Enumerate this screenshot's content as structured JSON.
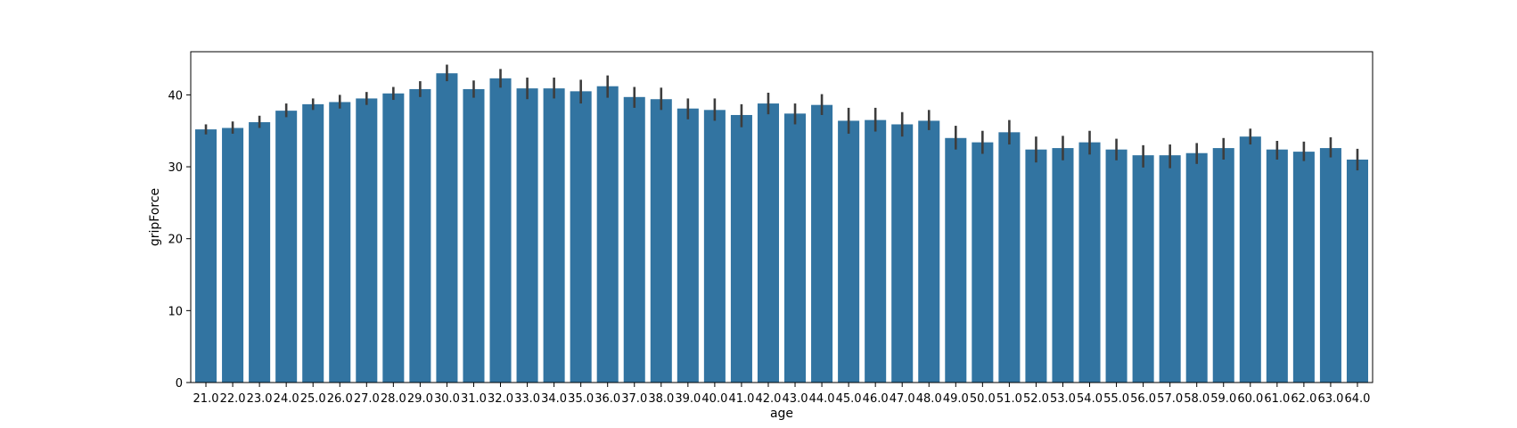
{
  "chart_data": {
    "type": "bar",
    "xlabel": "age",
    "ylabel": "gripForce",
    "ylim": [
      0,
      46
    ],
    "yticks": [
      0,
      10,
      20,
      30,
      40
    ],
    "grid": false,
    "bar_color": "#3274a1",
    "error_color": "#3d3d3d",
    "categories": [
      "21.0",
      "22.0",
      "23.0",
      "24.0",
      "25.0",
      "26.0",
      "27.0",
      "28.0",
      "29.0",
      "30.0",
      "31.0",
      "32.0",
      "33.0",
      "34.0",
      "35.0",
      "36.0",
      "37.0",
      "38.0",
      "39.0",
      "40.0",
      "41.0",
      "42.0",
      "43.0",
      "44.0",
      "45.0",
      "46.0",
      "47.0",
      "48.0",
      "49.0",
      "50.0",
      "51.0",
      "52.0",
      "53.0",
      "54.0",
      "55.0",
      "56.0",
      "57.0",
      "58.0",
      "59.0",
      "60.0",
      "61.0",
      "62.0",
      "63.0",
      "64.0"
    ],
    "values": [
      35.2,
      35.4,
      36.2,
      37.8,
      38.7,
      39.0,
      39.5,
      40.2,
      40.8,
      43.0,
      40.8,
      42.3,
      40.9,
      40.9,
      40.5,
      41.2,
      39.7,
      39.4,
      38.1,
      37.9,
      37.2,
      38.8,
      37.4,
      38.6,
      36.4,
      36.5,
      35.9,
      36.4,
      34.0,
      33.4,
      34.8,
      32.4,
      32.6,
      33.4,
      32.4,
      31.6,
      31.6,
      31.9,
      32.6,
      34.2,
      32.4,
      32.1,
      32.6,
      31.0
    ],
    "error_low": [
      34.5,
      34.6,
      35.4,
      36.9,
      37.9,
      38.1,
      38.6,
      39.3,
      39.7,
      41.9,
      39.6,
      41.0,
      39.4,
      39.5,
      38.8,
      39.6,
      38.2,
      37.9,
      36.6,
      36.4,
      35.5,
      37.3,
      35.9,
      37.2,
      34.6,
      34.9,
      34.2,
      35.1,
      32.4,
      31.8,
      33.1,
      30.6,
      30.9,
      31.7,
      30.9,
      29.9,
      29.8,
      30.4,
      31.0,
      33.1,
      31.0,
      30.8,
      31.3,
      29.5
    ],
    "error_high": [
      35.9,
      36.3,
      37.1,
      38.8,
      39.5,
      40.0,
      40.4,
      41.1,
      41.9,
      44.2,
      42.0,
      43.6,
      42.4,
      42.4,
      42.1,
      42.7,
      41.1,
      41.0,
      39.5,
      39.5,
      38.7,
      40.3,
      38.8,
      40.1,
      38.2,
      38.2,
      37.6,
      37.9,
      35.7,
      35.0,
      36.5,
      34.2,
      34.3,
      35.0,
      33.9,
      33.0,
      33.1,
      33.3,
      34.0,
      35.3,
      33.6,
      33.5,
      34.1,
      32.5
    ]
  }
}
